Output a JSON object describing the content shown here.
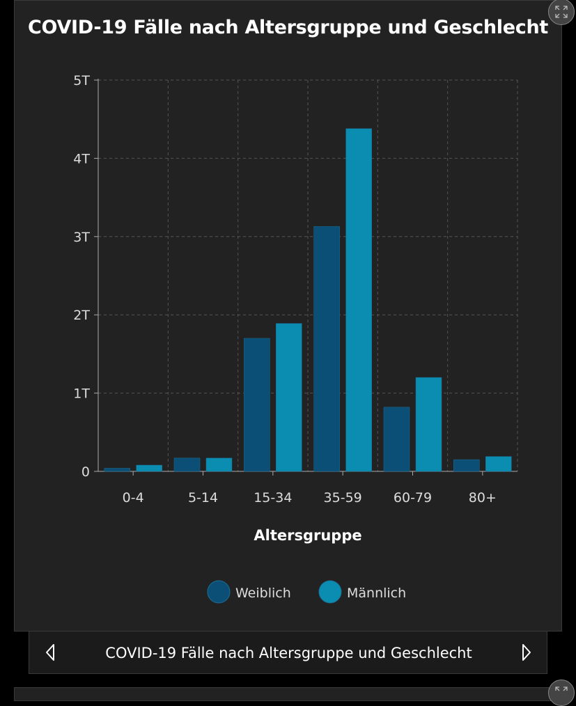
{
  "chart_data": {
    "type": "bar",
    "title": "COVID-19 Fälle nach Altersgruppe und Geschlecht",
    "xlabel": "Altersgruppe",
    "ylabel": "",
    "categories": [
      "0-4",
      "5-14",
      "15-34",
      "35-59",
      "60-79",
      "80+"
    ],
    "series": [
      {
        "name": "Weiblich",
        "color": "#0b4f77",
        "values": [
          40,
          170,
          1700,
          3130,
          820,
          150
        ]
      },
      {
        "name": "Männlich",
        "color": "#0a8db1",
        "values": [
          80,
          170,
          1890,
          4380,
          1200,
          190
        ]
      }
    ],
    "ylim": [
      0,
      5000
    ],
    "yticks": [
      0,
      1000,
      2000,
      3000,
      4000,
      5000
    ],
    "ytick_labels": [
      "0",
      "1T",
      "2T",
      "3T",
      "4T",
      "5T"
    ],
    "grid": true,
    "legend_position": "bottom"
  },
  "nav": {
    "title": "COVID-19 Fälle nach Altersgruppe und Geschlecht",
    "prev_icon": "chevron-left-icon",
    "next_icon": "chevron-right-icon"
  },
  "controls": {
    "expand_icon": "expand-icon"
  }
}
